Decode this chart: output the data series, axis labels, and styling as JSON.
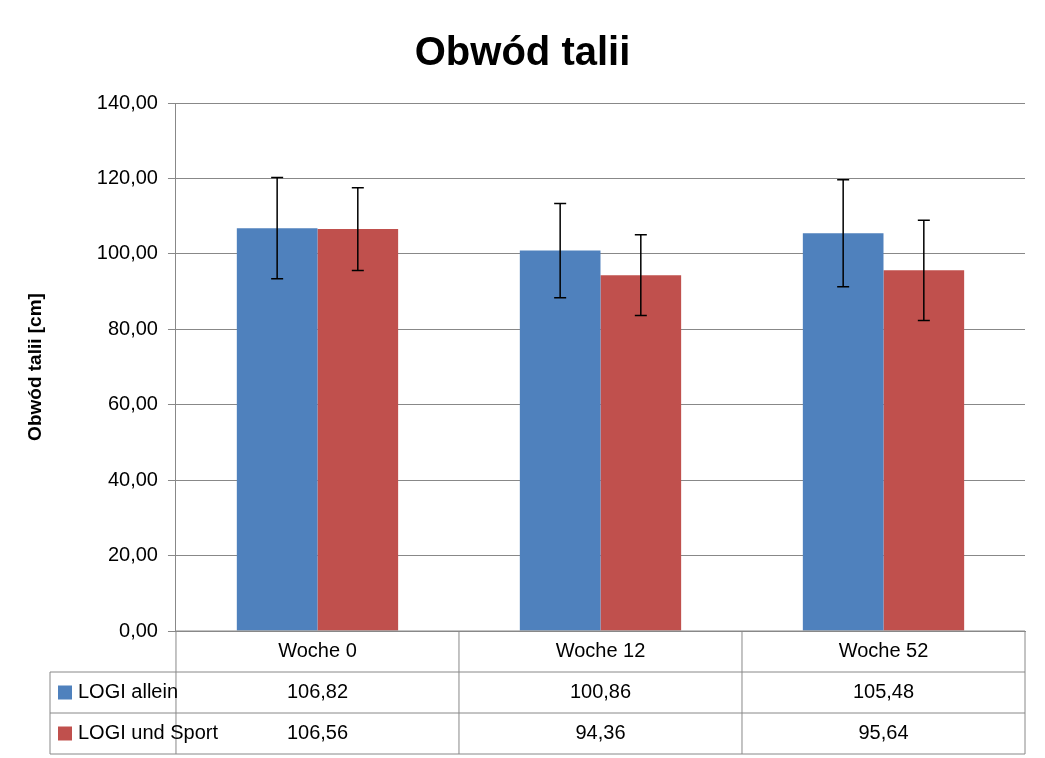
{
  "chart_data": {
    "type": "bar",
    "title": "Obwód talii",
    "ylabel": "Obwód talii [cm]",
    "categories": [
      "Woche 0",
      "Woche 12",
      "Woche 52"
    ],
    "series": [
      {
        "name": "LOGI allein",
        "color": "#4f81bd",
        "values": [
          106.82,
          100.86,
          105.48
        ],
        "value_labels": [
          "106,82",
          "100,86",
          "105,48"
        ],
        "errors": [
          13.4,
          12.5,
          14.2
        ]
      },
      {
        "name": "LOGI und Sport",
        "color": "#c0504d",
        "values": [
          106.56,
          94.36,
          95.64
        ],
        "value_labels": [
          "106,56",
          "94,36",
          "95,64"
        ],
        "errors": [
          11,
          10.7,
          13.3
        ]
      }
    ],
    "ylim": [
      0,
      140
    ],
    "yticks": [
      {
        "value": 0,
        "label": "0,00"
      },
      {
        "value": 20,
        "label": "20,00"
      },
      {
        "value": 40,
        "label": "40,00"
      },
      {
        "value": 60,
        "label": "60,00"
      },
      {
        "value": 80,
        "label": "80,00"
      },
      {
        "value": 100,
        "label": "100,00"
      },
      {
        "value": 120,
        "label": "120,00"
      },
      {
        "value": 140,
        "label": "140,00"
      }
    ],
    "grid": "y",
    "legend": "bottom"
  }
}
